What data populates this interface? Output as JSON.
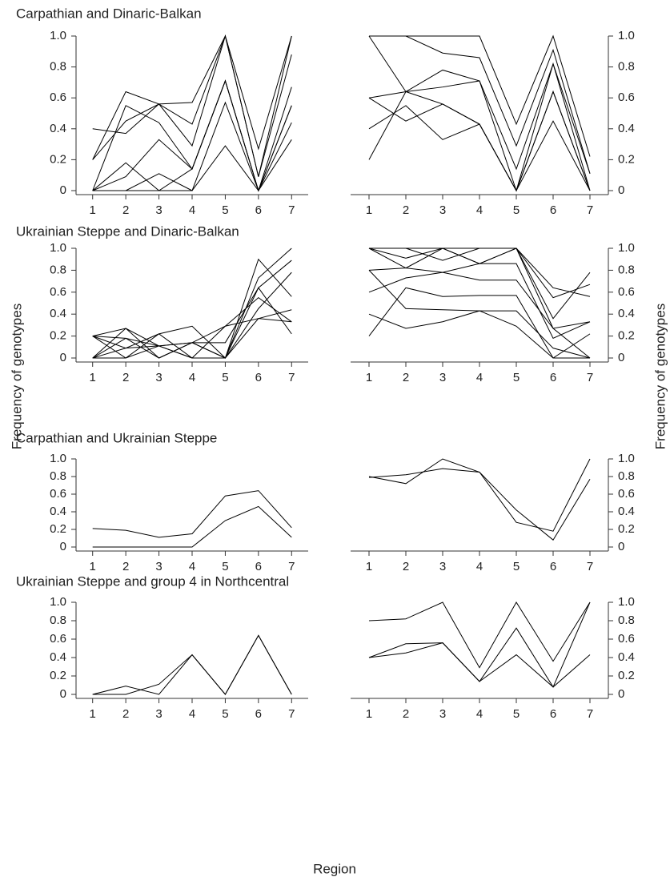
{
  "axis_labels": {
    "y_left": "Frequency of genotypes",
    "y_right": "Frequency of genotypes",
    "x": "Region"
  },
  "chart_data": [
    {
      "type": "line",
      "title": "Carpathian and Dinaric-Balkan",
      "color": "#000000",
      "x": [
        1,
        2,
        3,
        4,
        5,
        6,
        7
      ],
      "xlim": [
        0.5,
        7.5
      ],
      "xticks": [
        1,
        2,
        3,
        4,
        5,
        6,
        7
      ],
      "ylim": [
        0,
        1
      ],
      "yticks": [
        0,
        0.2,
        0.4,
        0.6,
        0.8,
        {
          "value": 1,
          "label": "1.0"
        }
      ],
      "series": [
        {
          "values": [
            0.2,
            0.64,
            0.56,
            0.43,
            1.0,
            0.27,
            1.0
          ]
        },
        {
          "values": [
            0.2,
            0.45,
            0.56,
            0.29,
            1.0,
            0.09,
            1.0
          ]
        },
        {
          "values": [
            0.4,
            0.37,
            0.56,
            0.57,
            1.0,
            0.09,
            0.88
          ]
        },
        {
          "values": [
            0,
            0.55,
            0.44,
            0.14,
            0.71,
            0,
            0.67
          ]
        },
        {
          "values": [
            0,
            0.18,
            0,
            0.14,
            0.71,
            0,
            0.55
          ]
        },
        {
          "values": [
            0,
            0.09,
            0.33,
            0.14,
            0.71,
            0,
            0.55
          ]
        },
        {
          "values": [
            0,
            0,
            0.11,
            0,
            0.57,
            0,
            0.44
          ]
        },
        {
          "values": [
            0,
            0,
            0,
            0,
            0.29,
            0,
            0.33
          ]
        }
      ]
    },
    {
      "type": "line",
      "color": "#000000",
      "x": [
        1,
        2,
        3,
        4,
        5,
        6,
        7
      ],
      "xlim": [
        0.5,
        7.5
      ],
      "xticks": [
        1,
        2,
        3,
        4,
        5,
        6,
        7
      ],
      "ylim": [
        0,
        1
      ],
      "yticks": [
        0,
        0.2,
        0.4,
        0.6,
        0.8,
        {
          "value": 1,
          "label": "1.0"
        }
      ],
      "series": [
        {
          "values": [
            1.0,
            1.0,
            1.0,
            1.0,
            0.43,
            1.0,
            0.22
          ]
        },
        {
          "values": [
            1.0,
            1.0,
            0.89,
            0.86,
            0.29,
            0.91,
            0.11
          ]
        },
        {
          "values": [
            1.0,
            0.64,
            0.67,
            0.71,
            0.14,
            0.82,
            0.11
          ]
        },
        {
          "values": [
            0.6,
            0.64,
            0.78,
            0.71,
            0,
            0.82,
            0
          ]
        },
        {
          "values": [
            0.4,
            0.55,
            0.33,
            0.43,
            0,
            0.64,
            0
          ]
        },
        {
          "values": [
            0.6,
            0.45,
            0.56,
            0.43,
            0,
            0.45,
            0
          ]
        },
        {
          "values": [
            0.2,
            0.64,
            0.56,
            0.43,
            0,
            0.64,
            0
          ]
        }
      ]
    },
    {
      "type": "line",
      "title": "Ukrainian Steppe and Dinaric-Balkan",
      "color": "#000000",
      "x": [
        1,
        2,
        3,
        4,
        5,
        6,
        7
      ],
      "xlim": [
        0.5,
        7.5
      ],
      "xticks": [
        1,
        2,
        3,
        4,
        5,
        6,
        7
      ],
      "ylim": [
        0,
        1
      ],
      "yticks": [
        0,
        0.2,
        0.4,
        0.6,
        0.8,
        {
          "value": 1,
          "label": "1.0"
        }
      ],
      "series": [
        {
          "values": [
            0.2,
            0.27,
            0,
            0.14,
            0,
            0.9,
            0.56
          ]
        },
        {
          "values": [
            0.2,
            0,
            0.22,
            0.29,
            0,
            0.73,
            1.0
          ]
        },
        {
          "values": [
            0,
            0.27,
            0.11,
            0,
            0.29,
            0.55,
            0.33
          ]
        },
        {
          "values": [
            0.2,
            0.09,
            0.22,
            0,
            0,
            0.64,
            0.89
          ]
        },
        {
          "values": [
            0,
            0.18,
            0,
            0.14,
            0,
            0.36,
            0.33
          ]
        },
        {
          "values": [
            0,
            0.09,
            0.11,
            0.14,
            0.14,
            0.64,
            0.22
          ]
        },
        {
          "values": [
            0.2,
            0.18,
            0.11,
            0,
            0,
            0.45,
            0.78
          ]
        },
        {
          "values": [
            0,
            0,
            0.11,
            0.14,
            0.29,
            0.36,
            0.44
          ]
        }
      ]
    },
    {
      "type": "line",
      "color": "#000000",
      "x": [
        1,
        2,
        3,
        4,
        5,
        6,
        7
      ],
      "xlim": [
        0.5,
        7.5
      ],
      "xticks": [
        1,
        2,
        3,
        4,
        5,
        6,
        7
      ],
      "ylim": [
        0,
        1
      ],
      "yticks": [
        0,
        0.2,
        0.4,
        0.6,
        0.8,
        {
          "value": 1,
          "label": "1.0"
        }
      ],
      "series": [
        {
          "values": [
            1.0,
            1.0,
            1.0,
            1.0,
            1.0,
            0.27,
            0
          ]
        },
        {
          "values": [
            1.0,
            0.91,
            1.0,
            0.86,
            1.0,
            0.64,
            0.56
          ]
        },
        {
          "values": [
            1.0,
            1.0,
            0.89,
            1.0,
            1.0,
            0.36,
            0.78
          ]
        },
        {
          "values": [
            1.0,
            0.82,
            0.78,
            0.71,
            0.71,
            0.27,
            0.33
          ]
        },
        {
          "values": [
            0.8,
            0.45,
            0.44,
            0.43,
            0.43,
            0.09,
            0
          ]
        },
        {
          "values": [
            0.6,
            0.73,
            0.78,
            0.86,
            0.86,
            0.18,
            0.33
          ]
        },
        {
          "values": [
            0.4,
            0.27,
            0.33,
            0.43,
            0.29,
            0,
            0.22
          ]
        },
        {
          "values": [
            0.2,
            0.64,
            0.56,
            0.57,
            0.57,
            0,
            0
          ]
        },
        {
          "values": [
            0.8,
            0.82,
            1.0,
            0.86,
            1.0,
            0.55,
            0.67
          ]
        }
      ]
    },
    {
      "type": "line",
      "title": "Carpathian and Ukrainian Steppe",
      "color": "#000000",
      "x": [
        1,
        2,
        3,
        4,
        5,
        6,
        7
      ],
      "xlim": [
        0.5,
        7.5
      ],
      "xticks": [
        1,
        2,
        3,
        4,
        5,
        6,
        7
      ],
      "ylim": [
        0,
        1
      ],
      "yticks": [
        0,
        0.2,
        0.4,
        0.6,
        0.8,
        {
          "value": 1,
          "label": "1.0"
        }
      ],
      "series": [
        {
          "values": [
            0.21,
            0.19,
            0.11,
            0.15,
            0.58,
            0.64,
            0.22
          ]
        },
        {
          "values": [
            0,
            0,
            0,
            0,
            0.3,
            0.46,
            0.11
          ]
        }
      ]
    },
    {
      "type": "line",
      "color": "#000000",
      "x": [
        1,
        2,
        3,
        4,
        5,
        6,
        7
      ],
      "xlim": [
        0.5,
        7.5
      ],
      "xticks": [
        1,
        2,
        3,
        4,
        5,
        6,
        7
      ],
      "ylim": [
        0,
        1
      ],
      "yticks": [
        0,
        0.2,
        0.4,
        0.6,
        0.8,
        {
          "value": 1,
          "label": "1.0"
        }
      ],
      "series": [
        {
          "values": [
            0.8,
            0.72,
            1.0,
            0.85,
            0.28,
            0.18,
            1.0
          ]
        },
        {
          "values": [
            0.79,
            0.82,
            0.89,
            0.85,
            0.42,
            0.08,
            0.77
          ]
        }
      ]
    },
    {
      "type": "line",
      "title": "Ukrainian Steppe and group 4 in Northcentral",
      "color": "#000000",
      "x": [
        1,
        2,
        3,
        4,
        5,
        6,
        7
      ],
      "xlim": [
        0.5,
        7.5
      ],
      "xticks": [
        1,
        2,
        3,
        4,
        5,
        6,
        7
      ],
      "ylim": [
        0,
        1
      ],
      "yticks": [
        0,
        0.2,
        0.4,
        0.6,
        0.8,
        {
          "value": 1,
          "label": "1.0"
        }
      ],
      "series": [
        {
          "values": [
            0,
            0.09,
            0,
            0.43,
            0,
            0.64,
            0
          ]
        },
        {
          "values": [
            0,
            0,
            0.11,
            0.43,
            0,
            0.64,
            0
          ]
        }
      ]
    },
    {
      "type": "line",
      "color": "#000000",
      "x": [
        1,
        2,
        3,
        4,
        5,
        6,
        7
      ],
      "xlim": [
        0.5,
        7.5
      ],
      "xticks": [
        1,
        2,
        3,
        4,
        5,
        6,
        7
      ],
      "ylim": [
        0,
        1
      ],
      "yticks": [
        0,
        0.2,
        0.4,
        0.6,
        0.8,
        {
          "value": 1,
          "label": "1.0"
        }
      ],
      "series": [
        {
          "values": [
            0.8,
            0.82,
            1.0,
            0.29,
            1.0,
            0.36,
            1.0
          ]
        },
        {
          "values": [
            0.4,
            0.55,
            0.56,
            0.14,
            0.72,
            0.08,
            1.0
          ]
        },
        {
          "values": [
            0.4,
            0.45,
            0.56,
            0.14,
            0.43,
            0.08,
            0.43
          ]
        }
      ]
    }
  ]
}
